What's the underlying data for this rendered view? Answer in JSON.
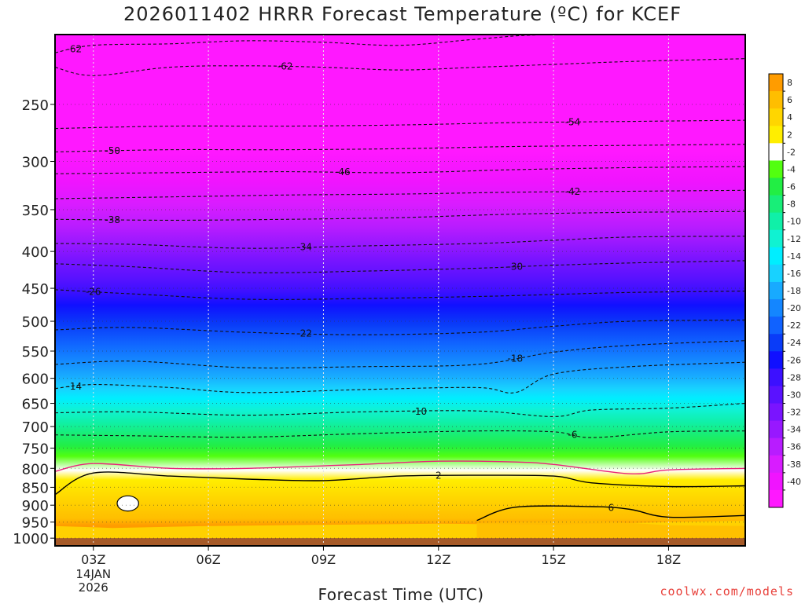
{
  "chart_data": {
    "type": "heatmap",
    "title": "2026011402 HRRR Forecast Temperature (ºC) for KCEF",
    "xlabel": "Forecast Time (UTC)",
    "ylabel": "",
    "x_tick_labels": [
      "03Z",
      "06Z",
      "09Z",
      "12Z",
      "15Z",
      "18Z"
    ],
    "x_tick_hours": [
      3,
      6,
      9,
      12,
      15,
      18
    ],
    "x_range_hours": [
      2,
      20
    ],
    "date_label": [
      "14JAN",
      "2026"
    ],
    "y_ticks": [
      250,
      300,
      350,
      400,
      450,
      500,
      550,
      600,
      650,
      700,
      750,
      800,
      850,
      900,
      950,
      1000
    ],
    "y_range": [
      1025,
      200
    ],
    "y_scale": "log",
    "grid": true,
    "colorbar": {
      "placement": "right",
      "labels": [
        "8",
        "6",
        "4",
        "2",
        "-2",
        "-4",
        "-6",
        "-8",
        "-10",
        "-12",
        "-14",
        "-16",
        "-18",
        "-20",
        "-22",
        "-24",
        "-26",
        "-28",
        "-30",
        "-32",
        "-34",
        "-36",
        "-38",
        "-40"
      ],
      "colors": [
        "#ff9c00",
        "#ffbe00",
        "#ffd600",
        "#ffee00",
        "#ffffff",
        "#52ff10",
        "#22ee44",
        "#18ee78",
        "#10f0a8",
        "#10f2d2",
        "#00eeff",
        "#18d2ff",
        "#18aaff",
        "#1486ff",
        "#1062ff",
        "#0a3cf8",
        "#1010ff",
        "#3c10ff",
        "#5a12ff",
        "#7a14ff",
        "#9818ff",
        "#b81cff",
        "#d81cff",
        "#f014ff",
        "#ff18ff"
      ]
    },
    "ground_color": "#a65a28",
    "contours_dashed": [
      {
        "value": -62,
        "label": "-62",
        "points": [
          [
            2,
            212
          ],
          [
            3,
            207
          ],
          [
            5,
            206
          ],
          [
            7,
            204
          ],
          [
            9,
            205
          ],
          [
            11,
            207
          ],
          [
            13,
            203
          ],
          [
            15,
            200
          ],
          [
            20,
            200
          ]
        ]
      },
      {
        "value": -62,
        "label": "-62",
        "points": [
          [
            2,
            222
          ],
          [
            3,
            228
          ],
          [
            5,
            222
          ],
          [
            7,
            221
          ],
          [
            9,
            222
          ],
          [
            11,
            224
          ],
          [
            13,
            222
          ],
          [
            15,
            220
          ],
          [
            17,
            218
          ],
          [
            20,
            216
          ]
        ]
      },
      {
        "value": -54,
        "label": "-54",
        "points": [
          [
            2,
            270
          ],
          [
            5,
            268
          ],
          [
            8,
            268
          ],
          [
            11,
            267
          ],
          [
            14,
            265
          ],
          [
            17,
            264
          ],
          [
            20,
            263
          ]
        ]
      },
      {
        "value": -50,
        "label": "-50",
        "points": [
          [
            2,
            291
          ],
          [
            5,
            289
          ],
          [
            8,
            289
          ],
          [
            11,
            288
          ],
          [
            14,
            286
          ],
          [
            17,
            285
          ],
          [
            20,
            284
          ]
        ]
      },
      {
        "value": -46,
        "label": "-46",
        "points": [
          [
            2,
            312
          ],
          [
            5,
            311
          ],
          [
            8,
            310
          ],
          [
            11,
            311
          ],
          [
            14,
            308
          ],
          [
            17,
            306
          ],
          [
            20,
            305
          ]
        ]
      },
      {
        "value": -42,
        "label": "-42",
        "points": [
          [
            2,
            338
          ],
          [
            5,
            336
          ],
          [
            8,
            334
          ],
          [
            11,
            333
          ],
          [
            14,
            331
          ],
          [
            17,
            330
          ],
          [
            20,
            329
          ]
        ]
      },
      {
        "value": -38,
        "label": "-38",
        "points": [
          [
            2,
            361
          ],
          [
            5,
            362
          ],
          [
            8,
            361
          ],
          [
            11,
            359
          ],
          [
            14,
            355
          ],
          [
            17,
            353
          ],
          [
            20,
            352
          ]
        ]
      },
      {
        "value": -34,
        "label": "-34",
        "points": [
          [
            2,
            390
          ],
          [
            4,
            391
          ],
          [
            7,
            396
          ],
          [
            10,
            393
          ],
          [
            13,
            390
          ],
          [
            15,
            386
          ],
          [
            17,
            382
          ],
          [
            20,
            381
          ]
        ]
      },
      {
        "value": -30,
        "label": "-30",
        "points": [
          [
            2,
            416
          ],
          [
            4,
            420
          ],
          [
            7,
            428
          ],
          [
            10,
            426
          ],
          [
            13,
            422
          ],
          [
            15,
            418
          ],
          [
            17,
            415
          ],
          [
            20,
            412
          ]
        ]
      },
      {
        "value": -26,
        "label": "-26",
        "points": [
          [
            2,
            452
          ],
          [
            4,
            458
          ],
          [
            7,
            466
          ],
          [
            10,
            465
          ],
          [
            13,
            462
          ],
          [
            15,
            459
          ],
          [
            17,
            456
          ],
          [
            20,
            454
          ]
        ]
      },
      {
        "value": -22,
        "label": "-22",
        "points": [
          [
            2,
            514
          ],
          [
            4,
            510
          ],
          [
            7,
            518
          ],
          [
            10,
            522
          ],
          [
            13,
            518
          ],
          [
            15,
            508
          ],
          [
            17,
            500
          ],
          [
            20,
            498
          ]
        ]
      },
      {
        "value": -18,
        "label": "-18",
        "points": [
          [
            2,
            574
          ],
          [
            4,
            568
          ],
          [
            7,
            580
          ],
          [
            10,
            578
          ],
          [
            13,
            574
          ],
          [
            15,
            552
          ],
          [
            17,
            540
          ],
          [
            20,
            532
          ]
        ]
      },
      {
        "value": -14,
        "label": "-14",
        "points": [
          [
            2,
            620
          ],
          [
            3,
            612
          ],
          [
            5,
            618
          ],
          [
            7,
            628
          ],
          [
            10,
            622
          ],
          [
            13,
            618
          ],
          [
            14,
            628
          ],
          [
            15,
            592
          ],
          [
            17,
            578
          ],
          [
            20,
            570
          ]
        ]
      },
      {
        "value": -10,
        "label": "-10",
        "points": [
          [
            2,
            670
          ],
          [
            4,
            668
          ],
          [
            7,
            675
          ],
          [
            10,
            668
          ],
          [
            13,
            666
          ],
          [
            15,
            678
          ],
          [
            16,
            664
          ],
          [
            18,
            660
          ],
          [
            20,
            650
          ]
        ]
      },
      {
        "value": -6,
        "label": "-6",
        "points": [
          [
            2,
            719
          ],
          [
            4,
            721
          ],
          [
            7,
            724
          ],
          [
            10,
            716
          ],
          [
            13,
            710
          ],
          [
            15,
            712
          ],
          [
            16,
            725
          ],
          [
            18,
            712
          ],
          [
            20,
            710
          ]
        ]
      }
    ],
    "contours_solid": [
      {
        "value": 0,
        "color": "#e8227a",
        "points": [
          [
            2,
            808
          ],
          [
            3,
            788
          ],
          [
            5,
            800
          ],
          [
            7,
            800
          ],
          [
            10,
            790
          ],
          [
            12,
            782
          ],
          [
            14,
            784
          ],
          [
            15,
            790
          ],
          [
            17,
            814
          ],
          [
            18,
            804
          ],
          [
            20,
            800
          ]
        ]
      },
      {
        "value": 2,
        "label": "2",
        "color": "#000000",
        "points": [
          [
            2,
            870
          ],
          [
            3,
            812
          ],
          [
            5,
            820
          ],
          [
            7,
            828
          ],
          [
            9,
            832
          ],
          [
            11,
            820
          ],
          [
            13,
            818
          ],
          [
            15,
            820
          ],
          [
            16,
            838
          ],
          [
            18,
            848
          ],
          [
            20,
            846
          ]
        ]
      },
      {
        "value": 6,
        "label": "6",
        "color": "#000000",
        "points": [
          [
            13,
            945
          ],
          [
            14,
            906
          ],
          [
            16,
            904
          ],
          [
            17,
            912
          ],
          [
            18,
            935
          ],
          [
            20,
            930
          ]
        ]
      }
    ],
    "warm_isolines": [
      {
        "points": [
          [
            2,
            962
          ],
          [
            3.5,
            968
          ],
          [
            6,
            962
          ],
          [
            9,
            958
          ],
          [
            12,
            955
          ],
          [
            15,
            958
          ],
          [
            18,
            950
          ],
          [
            20,
            946
          ]
        ],
        "color": "#ffd600"
      },
      {
        "points": [
          [
            13,
            952
          ],
          [
            16,
            945
          ],
          [
            18,
            960
          ],
          [
            20,
            962
          ]
        ],
        "color": "#ffbe00"
      }
    ],
    "closed_cell": {
      "center": [
        3.9,
        895
      ],
      "rx": 0.28,
      "ry_hpa": 22,
      "color": "#ffffff"
    }
  },
  "credit": "coolwx.com/models"
}
